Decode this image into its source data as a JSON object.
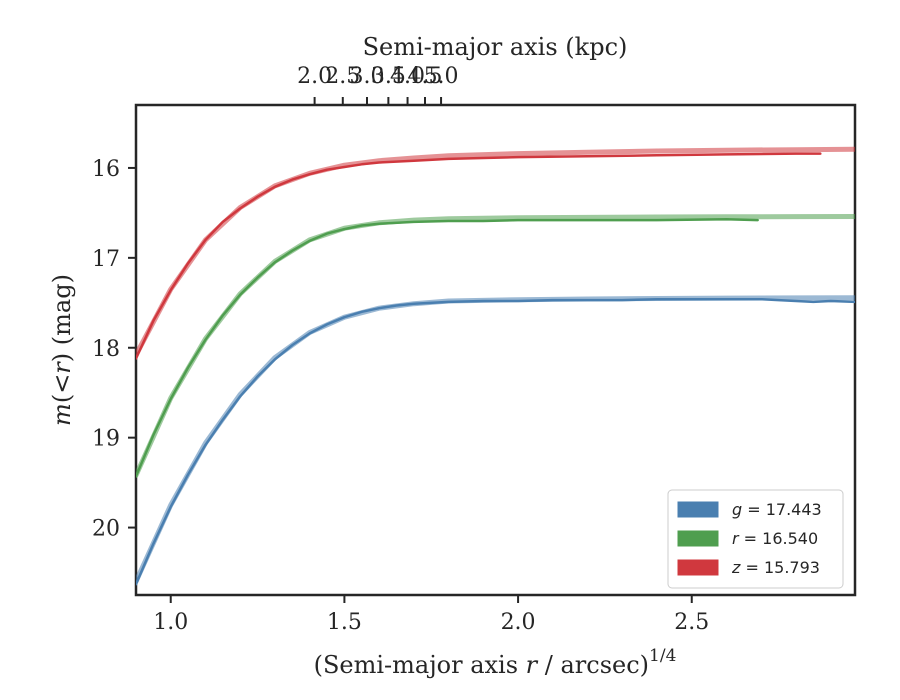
{
  "chart_data": {
    "type": "line",
    "title": "",
    "xlabel": {
      "prefix": "(Semi-major axis ",
      "var": "r",
      "suffix": " / arcsec)",
      "exponent": "1/4"
    },
    "ylabel": {
      "prefix": "m",
      "middle": "(<",
      "var": "r",
      "suffix": ") (mag)"
    },
    "top_xlabel": "Semi-major axis (kpc)",
    "xlim": [
      0.9,
      2.97
    ],
    "ylim": [
      20.75,
      15.3
    ],
    "y_inverted": true,
    "x_ticks": [
      1.0,
      1.5,
      2.0,
      2.5
    ],
    "x_tick_labels": [
      "1.0",
      "1.5",
      "2.0",
      "2.5"
    ],
    "y_ticks": [
      16,
      17,
      18,
      19,
      20
    ],
    "y_tick_labels": [
      "16",
      "17",
      "18",
      "19",
      "20"
    ],
    "top_ticks_kpc": [
      2.0,
      2.5,
      3.0,
      3.5,
      4.0,
      4.5,
      5.0
    ],
    "top_tick_labels": [
      "2.0",
      "2.5",
      "3.0",
      "3.5",
      "4.0",
      "4.5",
      "5.0"
    ],
    "kpc_scale": 2.0,
    "legend_position": "lower-right",
    "colors": {
      "g": "#4a7fb0",
      "r": "#4f9e4f",
      "z": "#d0383e",
      "frame": "#262626"
    },
    "series": [
      {
        "name": "g",
        "label": {
          "var": "g",
          "value": " = 17.443"
        },
        "color": "#4a7fb0",
        "measured": {
          "x": [
            0.9,
            0.95,
            1.0,
            1.05,
            1.1,
            1.15,
            1.2,
            1.25,
            1.3,
            1.35,
            1.4,
            1.45,
            1.5,
            1.55,
            1.6,
            1.65,
            1.7,
            1.8,
            1.9,
            2.0,
            2.1,
            2.2,
            2.3,
            2.4,
            2.5,
            2.6,
            2.7,
            2.75,
            2.8,
            2.85,
            2.9,
            2.97
          ],
          "y": [
            20.63,
            20.18,
            19.77,
            19.41,
            19.08,
            18.8,
            18.54,
            18.32,
            18.13,
            17.97,
            17.84,
            17.74,
            17.66,
            17.6,
            17.56,
            17.53,
            17.51,
            17.49,
            17.48,
            17.48,
            17.47,
            17.47,
            17.47,
            17.46,
            17.46,
            17.46,
            17.46,
            17.47,
            17.48,
            17.49,
            17.48,
            17.49
          ]
        },
        "model": {
          "x": [
            0.9,
            1.0,
            1.1,
            1.2,
            1.3,
            1.4,
            1.5,
            1.6,
            1.7,
            1.8,
            2.0,
            2.2,
            2.4,
            2.6,
            2.8,
            2.97
          ],
          "y": [
            20.6,
            19.75,
            19.06,
            18.52,
            18.11,
            17.83,
            17.66,
            17.56,
            17.51,
            17.48,
            17.465,
            17.458,
            17.452,
            17.448,
            17.446,
            17.443
          ]
        }
      },
      {
        "name": "r",
        "label": {
          "var": "r",
          "value": " = 16.540"
        },
        "color": "#4f9e4f",
        "measured": {
          "x": [
            0.9,
            0.95,
            1.0,
            1.05,
            1.1,
            1.15,
            1.2,
            1.25,
            1.3,
            1.35,
            1.4,
            1.45,
            1.5,
            1.55,
            1.6,
            1.7,
            1.8,
            1.9,
            2.0,
            2.2,
            2.4,
            2.6,
            2.69
          ],
          "y": [
            19.43,
            18.97,
            18.57,
            18.22,
            17.91,
            17.64,
            17.41,
            17.22,
            17.05,
            16.92,
            16.81,
            16.73,
            16.68,
            16.64,
            16.62,
            16.6,
            16.59,
            16.59,
            16.58,
            16.58,
            16.58,
            16.57,
            16.58
          ]
        },
        "model": {
          "x": [
            0.9,
            1.0,
            1.1,
            1.2,
            1.3,
            1.4,
            1.5,
            1.6,
            1.7,
            1.8,
            2.0,
            2.2,
            2.4,
            2.6,
            2.8,
            2.97
          ],
          "y": [
            19.42,
            18.56,
            17.9,
            17.4,
            17.04,
            16.8,
            16.67,
            16.61,
            16.58,
            16.565,
            16.555,
            16.55,
            16.546,
            16.543,
            16.541,
            16.54
          ]
        }
      },
      {
        "name": "z",
        "label": {
          "var": "z",
          "value": " = 15.793"
        },
        "color": "#d0383e",
        "measured": {
          "x": [
            0.9,
            0.95,
            1.0,
            1.05,
            1.1,
            1.15,
            1.2,
            1.25,
            1.3,
            1.35,
            1.4,
            1.45,
            1.5,
            1.55,
            1.6,
            1.7,
            1.8,
            1.9,
            2.0,
            2.2,
            2.4,
            2.6,
            2.8,
            2.87
          ],
          "y": [
            18.12,
            17.7,
            17.36,
            17.06,
            16.8,
            16.6,
            16.45,
            16.32,
            16.21,
            16.13,
            16.07,
            16.02,
            15.99,
            15.96,
            15.94,
            15.92,
            15.9,
            15.89,
            15.88,
            15.87,
            15.86,
            15.85,
            15.84,
            15.84
          ]
        },
        "model": {
          "x": [
            0.9,
            1.0,
            1.1,
            1.2,
            1.3,
            1.4,
            1.5,
            1.6,
            1.7,
            1.8,
            2.0,
            2.2,
            2.4,
            2.6,
            2.8,
            2.97
          ],
          "y": [
            18.08,
            17.35,
            16.8,
            16.44,
            16.2,
            16.06,
            15.97,
            15.92,
            15.89,
            15.865,
            15.84,
            15.825,
            15.812,
            15.803,
            15.797,
            15.793
          ]
        }
      }
    ]
  }
}
